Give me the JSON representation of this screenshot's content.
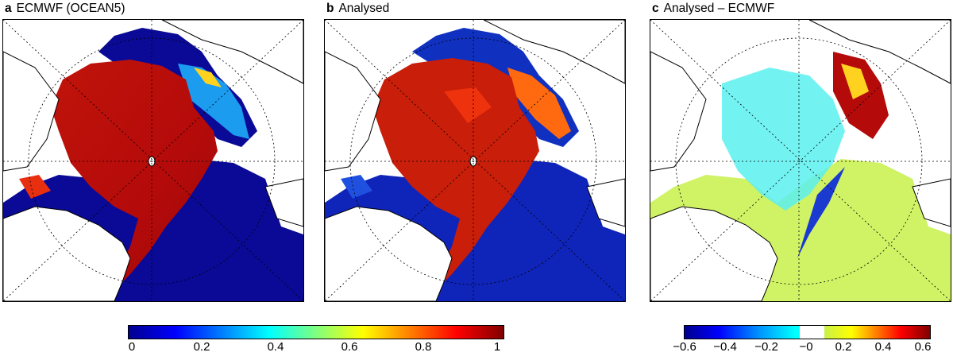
{
  "panels": [
    {
      "letter": "a",
      "title": "ECMWF (OCEAN5)"
    },
    {
      "letter": "b",
      "title": "Analysed"
    },
    {
      "letter": "c",
      "title": "Analysed – ECMWF"
    }
  ],
  "colorbars": [
    {
      "name": "concentration",
      "range": [
        0,
        1
      ],
      "colormap": "jet",
      "stops": [
        "#00008f",
        "#0000ff",
        "#00ffff",
        "#ffff00",
        "#ff0000",
        "#800000"
      ],
      "ticks": [
        "0",
        "0.2",
        "0.4",
        "0.6",
        "0.8",
        "1"
      ]
    },
    {
      "name": "difference",
      "range": [
        -0.6,
        0.6
      ],
      "colormap": "jet with white center band",
      "ticks": [
        "−0.6",
        "−0.4",
        "−0.2",
        "−0",
        "0.2",
        "0.4",
        "0.6"
      ]
    }
  ],
  "colors": {
    "ice_high": "#b40a0a",
    "ocean_low": "#0a0a96",
    "diff_positive": "#c8f04a",
    "diff_negative": "#5af0f0",
    "land": "#ffffff"
  }
}
